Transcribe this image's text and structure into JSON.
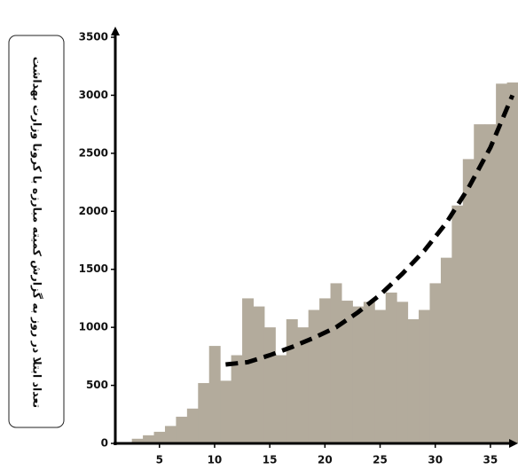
{
  "chart_data": {
    "type": "bar",
    "y_label": "تعداد ابتلا در روز به گزارش کمیته مبارزه با کرونا وزارت بهداشت",
    "x": [
      3,
      4,
      5,
      6,
      7,
      8,
      9,
      10,
      11,
      12,
      13,
      14,
      15,
      16,
      17,
      18,
      19,
      20,
      21,
      22,
      23,
      24,
      25,
      26,
      27,
      28,
      29,
      30,
      31,
      32,
      33,
      34,
      35,
      36,
      37
    ],
    "values": [
      40,
      70,
      100,
      150,
      230,
      300,
      520,
      840,
      540,
      760,
      1250,
      1180,
      1000,
      760,
      1070,
      1000,
      1150,
      1250,
      1380,
      1230,
      1180,
      1220,
      1150,
      1300,
      1220,
      1070,
      1150,
      1380,
      1600,
      2050,
      2450,
      2750,
      2750,
      3100,
      3110
    ],
    "color": "#b3ab9c",
    "trend": {
      "x": [
        11,
        13,
        15,
        17,
        19,
        21,
        23,
        25,
        27,
        29,
        31,
        33,
        35,
        37
      ],
      "values": [
        680,
        700,
        760,
        830,
        910,
        1000,
        1130,
        1280,
        1460,
        1660,
        1900,
        2200,
        2550,
        3000
      ],
      "color": "#000000"
    },
    "xlim": [
      1,
      37.5
    ],
    "xticks": [
      5,
      10,
      15,
      20,
      25,
      30,
      35
    ],
    "ylim": [
      0,
      3500
    ],
    "yticks": [
      0,
      500,
      1000,
      1500,
      2000,
      2500,
      3000,
      3500
    ]
  }
}
